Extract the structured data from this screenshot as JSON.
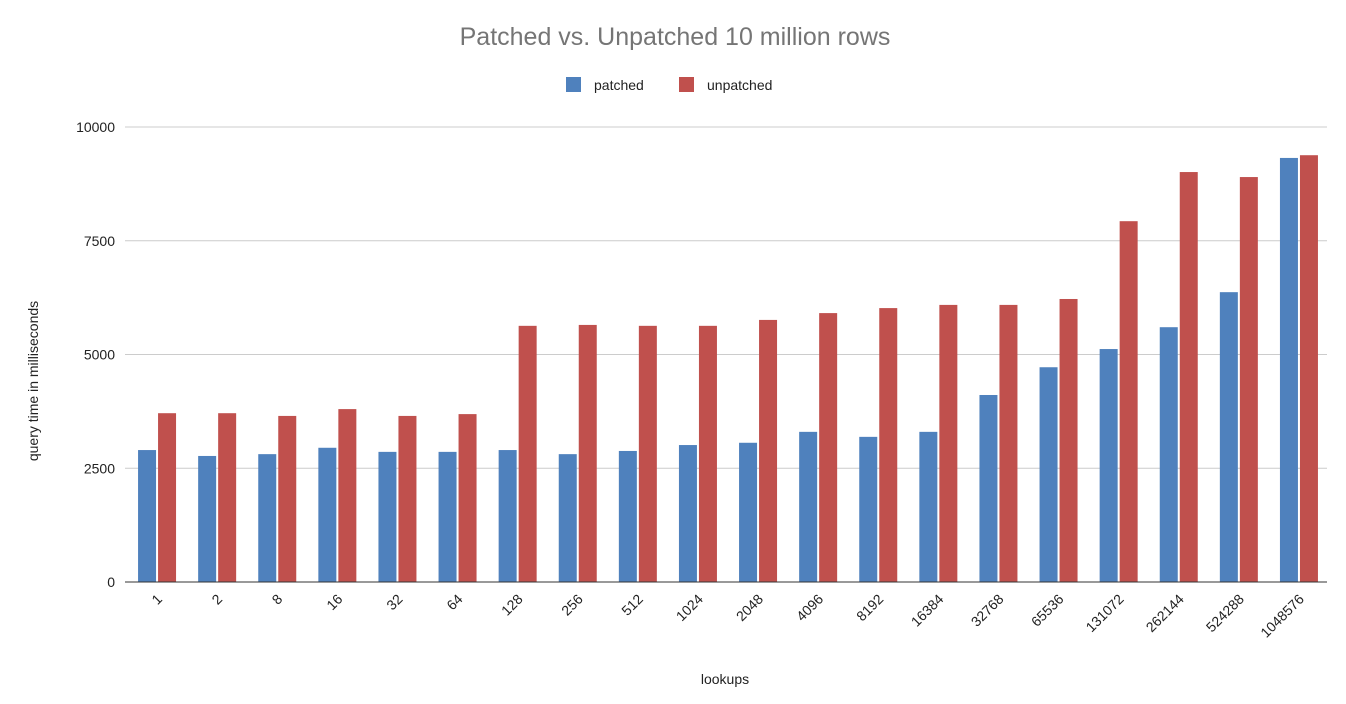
{
  "chart_data": {
    "type": "bar",
    "title": "Patched  vs. Unpatched 10 million rows",
    "xlabel": "lookups",
    "ylabel": "query time in milliseconds",
    "ylim": [
      0,
      10000
    ],
    "yticks": [
      "0",
      "2500",
      "5000",
      "7500",
      "10000"
    ],
    "ytick_values": [
      0,
      2500,
      5000,
      7500,
      10000
    ],
    "grid": true,
    "legend_position": "top-center",
    "categories": [
      "1",
      "2",
      "8",
      "16",
      "32",
      "64",
      "128",
      "256",
      "512",
      "1024",
      "2048",
      "4096",
      "8192",
      "16384",
      "32768",
      "65536",
      "131072",
      "262144",
      "524288",
      "1048576"
    ],
    "series": [
      {
        "name": "patched",
        "color": "#4f81bd",
        "values": [
          2900,
          2770,
          2810,
          2950,
          2860,
          2860,
          2900,
          2810,
          2880,
          3010,
          3060,
          3300,
          3190,
          3300,
          4110,
          4720,
          5120,
          5600,
          6370,
          9320
        ]
      },
      {
        "name": "unpatched",
        "color": "#c0504d",
        "values": [
          3710,
          3710,
          3650,
          3800,
          3650,
          3690,
          5630,
          5650,
          5630,
          5630,
          5760,
          5910,
          6020,
          6090,
          6090,
          6220,
          7930,
          9010,
          8900,
          9380
        ]
      }
    ]
  }
}
